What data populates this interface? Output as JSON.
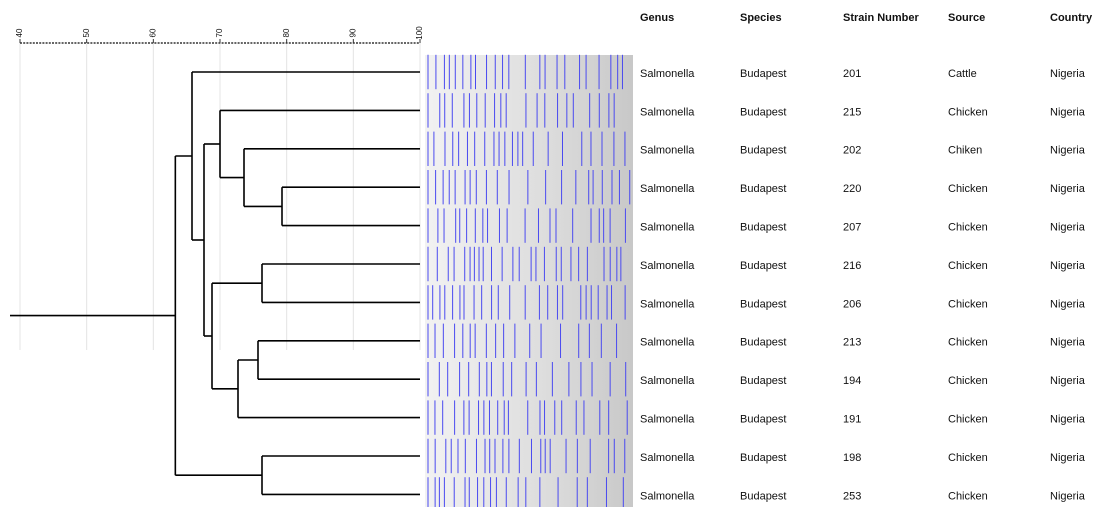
{
  "scale": {
    "ticks": [
      40,
      50,
      60,
      70,
      80,
      90,
      100
    ]
  },
  "dendrogram": {
    "merges": [
      {
        "left": 3,
        "right": 4,
        "similarity": 79.3
      },
      {
        "left": 2,
        "right": 12,
        "similarity": 73.6
      },
      {
        "left": 1,
        "right": 13,
        "similarity": 70.0
      },
      {
        "left": 5,
        "right": 6,
        "similarity": 76.3
      },
      {
        "left": 7,
        "right": 8,
        "similarity": 75.7
      },
      {
        "left": 16,
        "right": 9,
        "similarity": 72.7
      },
      {
        "left": 15,
        "right": 17,
        "similarity": 68.8
      },
      {
        "left": 14,
        "right": 18,
        "similarity": 67.6
      },
      {
        "left": 0,
        "right": 19,
        "similarity": 65.8
      },
      {
        "left": 10,
        "right": 11,
        "similarity": 76.3
      },
      {
        "left": 20,
        "right": 21,
        "similarity": 63.3
      }
    ]
  },
  "table": {
    "columns": [
      "Genus",
      "Species",
      "Strain Number",
      "Source",
      "Country"
    ],
    "rows": [
      [
        "Salmonella",
        "Budapest",
        "201",
        "Cattle",
        "Nigeria"
      ],
      [
        "Salmonella",
        "Budapest",
        "215",
        "Chicken",
        "Nigeria"
      ],
      [
        "Salmonella",
        "Budapest",
        "202",
        "Chiken",
        "Nigeria"
      ],
      [
        "Salmonella",
        "Budapest",
        "220",
        "Chicken",
        "Nigeria"
      ],
      [
        "Salmonella",
        "Budapest",
        "207",
        "Chicken",
        "Nigeria"
      ],
      [
        "Salmonella",
        "Budapest",
        "216",
        "Chicken",
        "Nigeria"
      ],
      [
        "Salmonella",
        "Budapest",
        "206",
        "Chicken",
        "Nigeria"
      ],
      [
        "Salmonella",
        "Budapest",
        "213",
        "Chicken",
        "Nigeria"
      ],
      [
        "Salmonella",
        "Budapest",
        "194",
        "Chicken",
        "Nigeria"
      ],
      [
        "Salmonella",
        "Budapest",
        "191",
        "Chicken",
        "Nigeria"
      ],
      [
        "Salmonella",
        "Budapest",
        "198",
        "Chicken",
        "Nigeria"
      ],
      [
        "Salmonella",
        "Budapest",
        "253",
        "Chicken",
        "Nigeria"
      ]
    ]
  }
}
